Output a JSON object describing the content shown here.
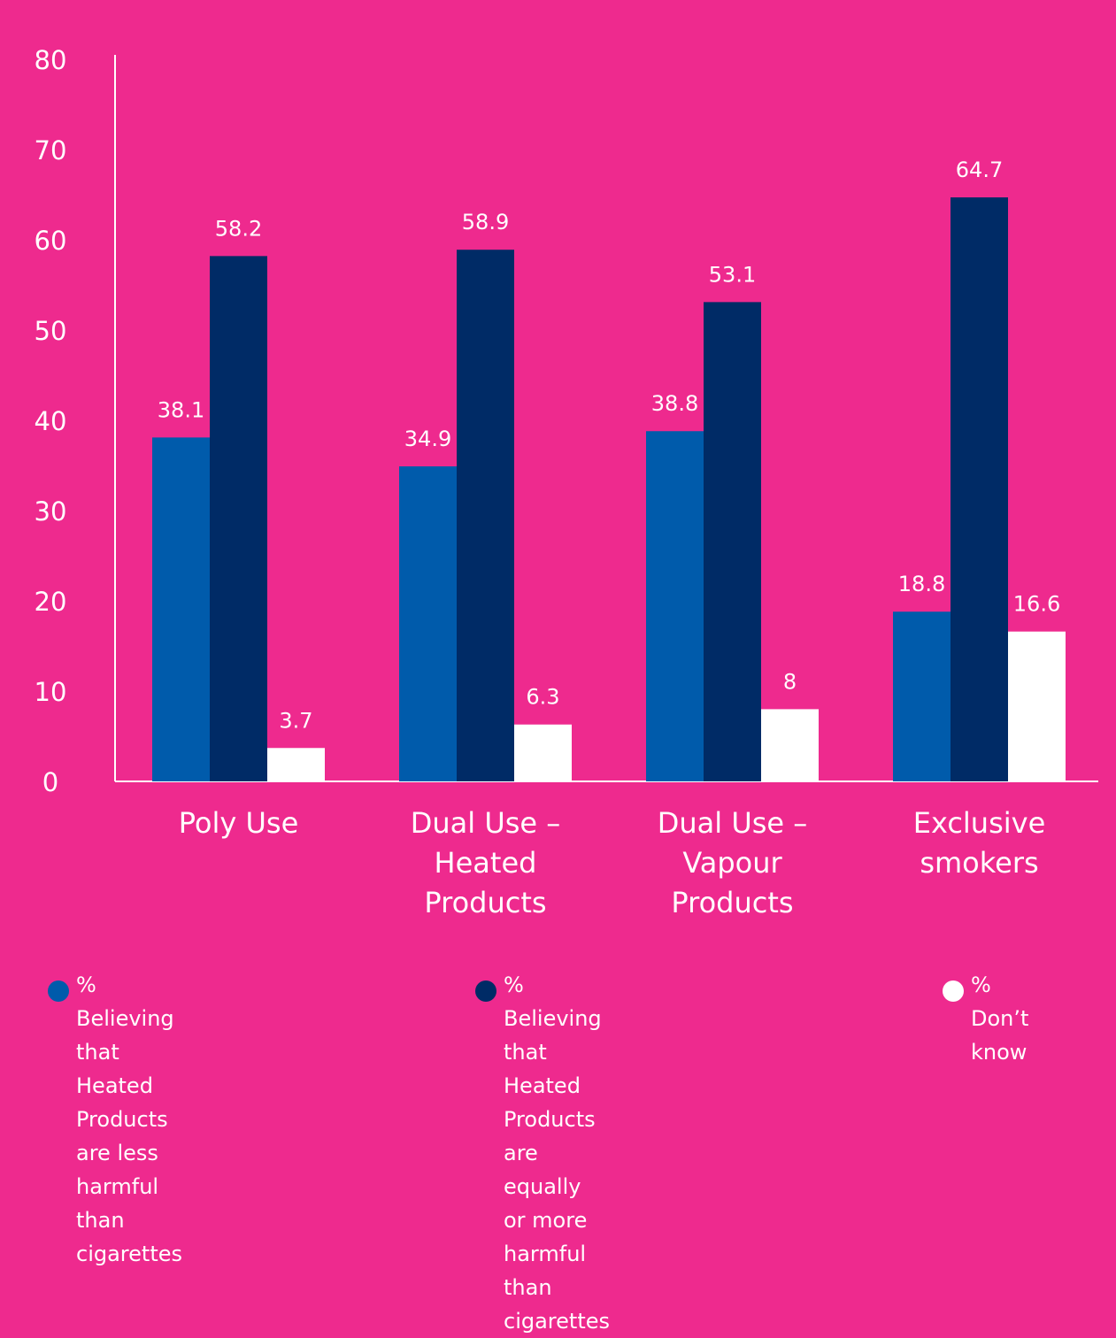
{
  "chart_data": {
    "type": "bar",
    "categories": [
      "Poly Use",
      "Dual Use –\nHeated\nProducts",
      "Dual Use –\nVapour\nProducts",
      "Exclusive\nsmokers"
    ],
    "series": [
      {
        "name": "% Believing that Heated\nProducts are less harmful\nthan cigarettes",
        "color": "#005BAB",
        "values": [
          38.1,
          34.9,
          38.8,
          18.8
        ]
      },
      {
        "name": "% Believing that Heated\nProducts are equally\nor more harmful than\ncigarettes",
        "color": "#002B66",
        "values": [
          58.2,
          58.9,
          53.1,
          64.7
        ]
      },
      {
        "name": "% Don’t\nknow",
        "color": "#FFFFFF",
        "values": [
          3.7,
          6.3,
          8,
          16.6
        ]
      }
    ],
    "ylim": [
      0,
      80
    ],
    "yticks": [
      0,
      10,
      20,
      30,
      40,
      50,
      60,
      70,
      80
    ],
    "grid": false,
    "legend": "bottom",
    "background": "#EE2A8E"
  }
}
